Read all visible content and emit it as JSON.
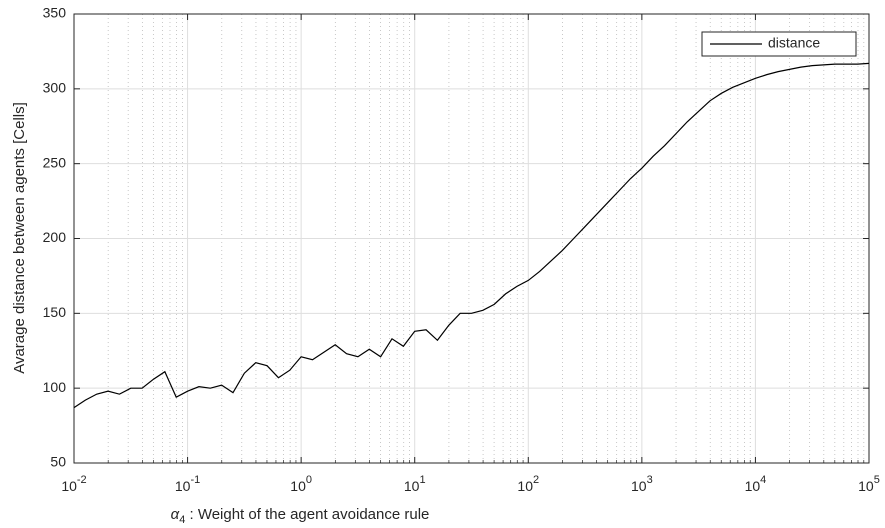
{
  "chart_data": {
    "type": "line",
    "xlabel": "α4 : Weight of the agent avoidance rule",
    "ylabel": "Avarage distance between agents [Cells]",
    "xscale": "log",
    "grid": true,
    "legend": "upper right",
    "xlim": [
      0.01,
      100000
    ],
    "ylim": [
      50,
      350
    ],
    "xticks": [
      {
        "value": 0.01,
        "label": "10^-2"
      },
      {
        "value": 0.1,
        "label": "10^-1"
      },
      {
        "value": 1,
        "label": "10^0"
      },
      {
        "value": 10,
        "label": "10^1"
      },
      {
        "value": 100,
        "label": "10^2"
      },
      {
        "value": 1000,
        "label": "10^3"
      },
      {
        "value": 10000,
        "label": "10^4"
      },
      {
        "value": 100000,
        "label": "10^5"
      }
    ],
    "yticks": [
      50,
      100,
      150,
      200,
      250,
      300,
      350
    ],
    "x": [
      0.01,
      0.01259,
      0.01585,
      0.01995,
      0.02512,
      0.03162,
      0.03981,
      0.05012,
      0.0631,
      0.07943,
      0.1,
      0.1259,
      0.1585,
      0.1995,
      0.2512,
      0.3162,
      0.3981,
      0.5012,
      0.631,
      0.7943,
      1,
      1.259,
      1.585,
      1.995,
      2.512,
      3.162,
      3.981,
      5.012,
      6.31,
      7.943,
      10,
      12.59,
      15.85,
      19.95,
      25.12,
      31.62,
      39.81,
      50.12,
      63.1,
      79.43,
      100,
      125.9,
      158.5,
      199.5,
      251.2,
      316.2,
      398.1,
      501.2,
      631,
      794.3,
      1000,
      1259,
      1585,
      1995,
      2512,
      3162,
      3981,
      5012,
      6310,
      7943,
      10000,
      12590,
      15850,
      19950,
      25120,
      31620,
      39810,
      50120,
      63100,
      79430,
      100000
    ],
    "series": [
      {
        "name": "distance",
        "color": "#000000",
        "values": [
          87,
          92,
          96,
          98,
          96,
          100,
          100,
          106,
          111,
          94,
          98,
          101,
          100,
          102,
          97,
          110,
          117,
          115,
          107,
          112,
          121,
          119,
          124,
          129,
          123,
          121,
          126,
          121,
          133,
          128,
          138,
          139,
          132,
          142,
          150,
          150,
          152,
          156,
          163,
          168,
          172,
          178,
          185,
          192,
          200,
          208,
          216,
          224,
          232,
          240,
          247,
          255,
          262,
          270,
          278,
          285,
          292,
          297,
          301,
          304,
          307,
          309.5,
          311.5,
          313,
          314.5,
          315.5,
          316,
          316.5,
          316.5,
          316.5,
          317
        ]
      }
    ]
  }
}
